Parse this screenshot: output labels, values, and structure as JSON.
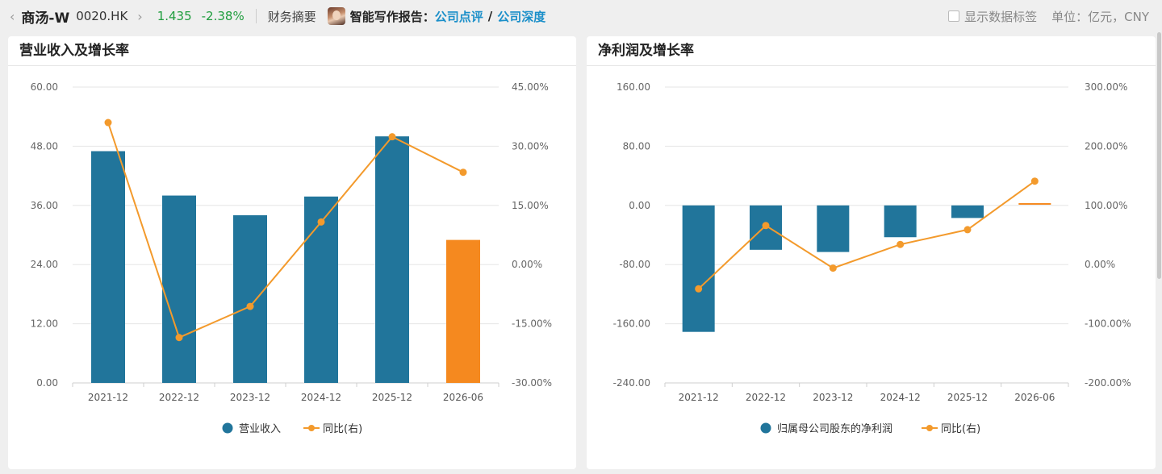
{
  "header": {
    "back_icon": "‹",
    "stock_name": "商汤-W",
    "stock_code": "0020.HK",
    "forward_icon": "›",
    "price": "1.435",
    "change": "-2.38%",
    "summary_label": "财务摘要",
    "ai_report_label": "智能写作报告：",
    "report_link_1": "公司点评",
    "report_sep": "/",
    "report_link_2": "公司深度",
    "show_labels": "显示数据标签",
    "unit": "单位：亿元，CNY",
    "colors": {
      "up_down": "#1f9d3e",
      "link": "#1b8fc9"
    }
  },
  "chart_data": [
    {
      "type": "bar",
      "title": "营业收入及增长率",
      "categories": [
        "2021-12",
        "2022-12",
        "2023-12",
        "2024-12",
        "2025-12",
        "2026-06"
      ],
      "series": [
        {
          "name": "营业收入",
          "kind": "bar",
          "axis": "left",
          "values": [
            47.0,
            38.0,
            34.0,
            37.8,
            50.0,
            29.0
          ],
          "color": "#21759b",
          "highlight_last_color": "#f5891f"
        },
        {
          "name": "同比(右)",
          "kind": "line",
          "axis": "right",
          "values": [
            36.0,
            -18.5,
            -10.6,
            10.8,
            32.4,
            23.4
          ],
          "color": "#f39a2c"
        }
      ],
      "left_axis": {
        "min": 0,
        "max": 60,
        "ticks": [
          "0.00",
          "12.00",
          "24.00",
          "36.00",
          "48.00",
          "60.00"
        ]
      },
      "right_axis": {
        "min": -30,
        "max": 45,
        "ticks": [
          "-30.00%",
          "-15.00%",
          "0.00%",
          "15.00%",
          "30.00%",
          "45.00%"
        ]
      },
      "grid": true,
      "legend_position": "bottom-center"
    },
    {
      "type": "bar",
      "title": "净利润及增长率",
      "categories": [
        "2021-12",
        "2022-12",
        "2023-12",
        "2024-12",
        "2025-12",
        "2026-06"
      ],
      "series": [
        {
          "name": "归属母公司股东的净利润",
          "kind": "bar",
          "axis": "left",
          "values": [
            -171.0,
            -60.0,
            -63.0,
            -43.0,
            -17.0,
            2.0
          ],
          "color": "#21759b",
          "highlight_last_color": "#f5891f"
        },
        {
          "name": "同比(右)",
          "kind": "line",
          "axis": "right",
          "values": [
            -41.0,
            66.0,
            -6.0,
            34.0,
            59.0,
            141.0
          ],
          "color": "#f39a2c"
        }
      ],
      "left_axis": {
        "min": -240,
        "max": 160,
        "ticks": [
          "-240.00",
          "-160.00",
          "-80.00",
          "0.00",
          "80.00",
          "160.00"
        ]
      },
      "right_axis": {
        "min": -200,
        "max": 300,
        "ticks": [
          "-200.00%",
          "-100.00%",
          "0.00%",
          "100.00%",
          "200.00%",
          "300.00%"
        ]
      },
      "grid": true,
      "legend_position": "bottom-center"
    }
  ]
}
